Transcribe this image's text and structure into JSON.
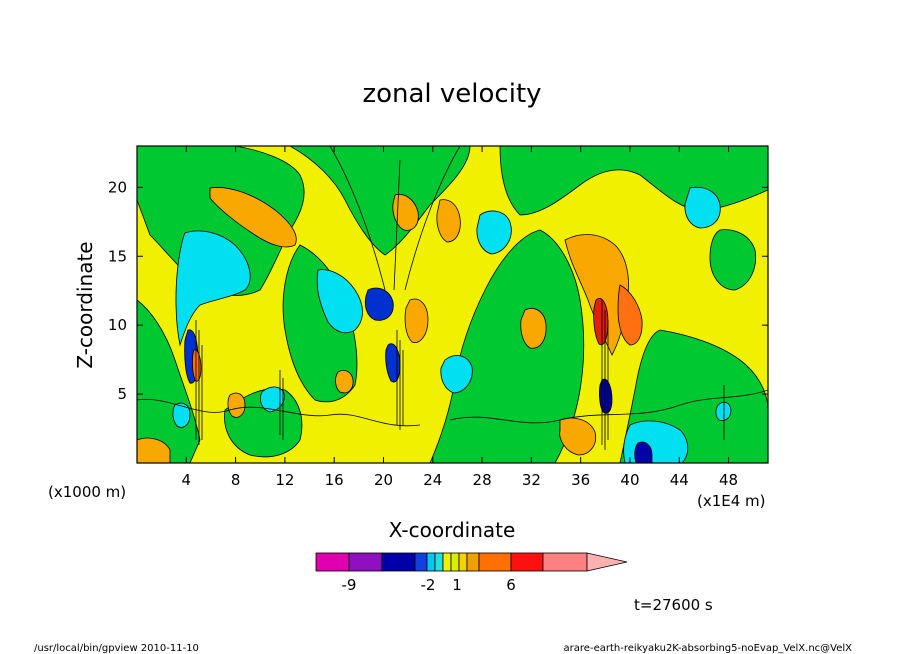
{
  "chart_data": {
    "type": "heatmap",
    "title": "zonal velocity",
    "xlabel": "X-coordinate",
    "ylabel": "Z-coordinate",
    "x_unit": "(x1000 m)",
    "x_scale_label": "(x1E4 m)",
    "xlim": [
      0,
      51.2
    ],
    "ylim": [
      0,
      23
    ],
    "x_ticks": [
      4,
      8,
      12,
      16,
      20,
      24,
      28,
      32,
      36,
      40,
      44,
      48
    ],
    "y_ticks": [
      5,
      10,
      15,
      20
    ],
    "colorbar": {
      "colors": [
        "#e000b0",
        "#8f10c0",
        "#0000a8",
        "#1040e0",
        "#00c8f0",
        "#20e0e0",
        "#f0f000",
        "#d8f000",
        "#f8d000",
        "#f0a000",
        "#ff7000",
        "#ff1010",
        "#ff8080",
        "#ffb0b0"
      ],
      "labels": [
        {
          "text": "-9",
          "index": 2
        },
        {
          "text": "-2",
          "index": 5
        },
        {
          "text": "1",
          "index": 7
        },
        {
          "text": "6",
          "index": 10
        }
      ]
    },
    "time_label": "t=27600 s"
  },
  "footer": {
    "left": "/usr/local/bin/gpview  2010-11-10",
    "right": "arare-earth-reikyaku2K-absorbing5-noEvap_VelX.nc@VelX"
  }
}
